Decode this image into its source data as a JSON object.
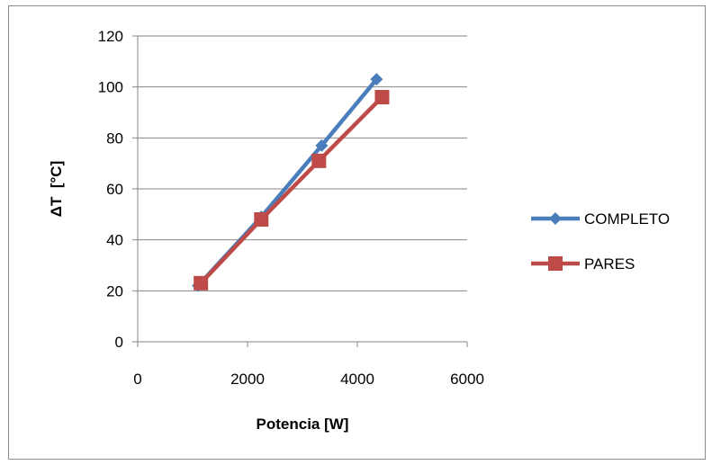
{
  "chart_data": {
    "type": "line",
    "title": "",
    "xlabel": "Potencia [W]",
    "ylabel": "ΔT  [°C]",
    "xlim": [
      0,
      6000
    ],
    "ylim": [
      0,
      120
    ],
    "xticks": [
      "0",
      "2000",
      "4000",
      "6000"
    ],
    "yticks": [
      "0",
      "20",
      "40",
      "60",
      "80",
      "100",
      "120"
    ],
    "grid": "horizontal",
    "legend_position": "right",
    "series": [
      {
        "name": "COMPLETO",
        "color": "#4a7ebb",
        "marker": "diamond",
        "x": [
          1100,
          2250,
          3350,
          4350
        ],
        "y": [
          22,
          49,
          77,
          103
        ]
      },
      {
        "name": "PARES",
        "color": "#be4b48",
        "marker": "square",
        "x": [
          1150,
          2250,
          3300,
          4450
        ],
        "y": [
          23,
          48,
          71,
          96
        ]
      }
    ]
  }
}
